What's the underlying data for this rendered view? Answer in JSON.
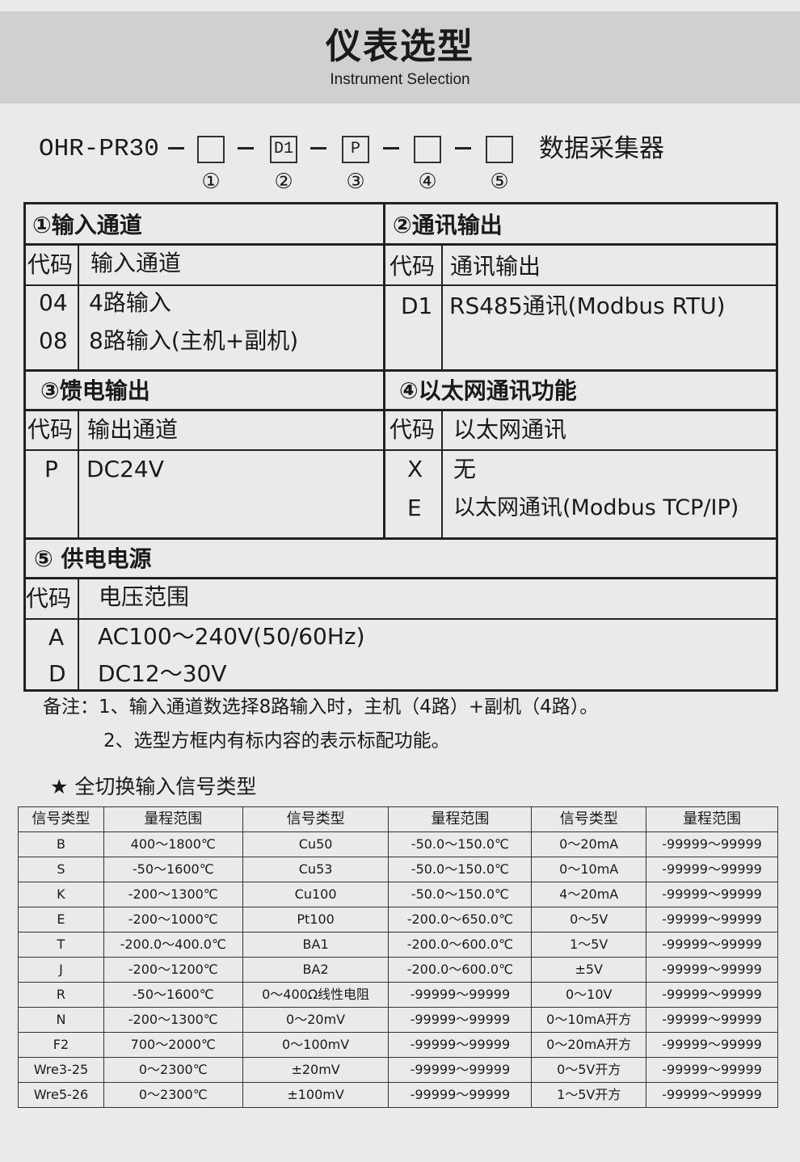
{
  "header": {
    "title": "仪表选型",
    "subtitle": "Instrument Selection"
  },
  "model": {
    "prefix": "OHR-PR30",
    "boxes": [
      "",
      "D1",
      "P",
      "",
      ""
    ],
    "markers": [
      "①",
      "②",
      "③",
      "④",
      "⑤"
    ],
    "product": "数据采集器"
  },
  "selection": {
    "code_label": "代码",
    "s1": {
      "title": "①输入通道",
      "col": "输入通道",
      "rows": [
        {
          "code": "04",
          "desc": "4路输入"
        },
        {
          "code": "08",
          "desc": "8路输入(主机+副机)"
        }
      ]
    },
    "s2": {
      "title": "②通讯输出",
      "col": "通讯输出",
      "rows": [
        {
          "code": "D1",
          "desc": "RS485通讯(Modbus RTU)"
        }
      ]
    },
    "s3": {
      "title": "③馈电输出",
      "col": "输出通道",
      "rows": [
        {
          "code": "P",
          "desc": "DC24V"
        }
      ]
    },
    "s4": {
      "title": "④以太网通讯功能",
      "col": "以太网通讯",
      "rows": [
        {
          "code": "X",
          "desc": "无"
        },
        {
          "code": "E",
          "desc": "以太网通讯(Modbus TCP/IP)"
        }
      ]
    },
    "s5": {
      "title": "⑤ 供电电源",
      "col": "电压范围",
      "rows": [
        {
          "code": "A",
          "desc": "AC100～240V(50/60Hz)"
        },
        {
          "code": "D",
          "desc": "DC12～30V"
        }
      ]
    }
  },
  "notes": {
    "line1": "备注：1、输入通道数选择8路输入时，主机（4路）+副机（4路）。",
    "line2": "2、选型方框内有标内容的表示标配功能。"
  },
  "signals": {
    "heading": "★ 全切换输入信号类型",
    "columns": [
      "信号类型",
      "量程范围",
      "信号类型",
      "量程范围",
      "信号类型",
      "量程范围"
    ],
    "rows": [
      [
        "B",
        "400～1800℃",
        "Cu50",
        "-50.0～150.0℃",
        "0～20mA",
        "-99999～99999"
      ],
      [
        "S",
        "-50～1600℃",
        "Cu53",
        "-50.0～150.0℃",
        "0～10mA",
        "-99999～99999"
      ],
      [
        "K",
        "-200～1300℃",
        "Cu100",
        "-50.0～150.0℃",
        "4～20mA",
        "-99999～99999"
      ],
      [
        "E",
        "-200～1000℃",
        "Pt100",
        "-200.0～650.0℃",
        "0～5V",
        "-99999～99999"
      ],
      [
        "T",
        "-200.0～400.0℃",
        "BA1",
        "-200.0～600.0℃",
        "1～5V",
        "-99999～99999"
      ],
      [
        "J",
        "-200～1200℃",
        "BA2",
        "-200.0～600.0℃",
        "±5V",
        "-99999～99999"
      ],
      [
        "R",
        "-50～1600℃",
        "0～400Ω线性电阻",
        "-99999～99999",
        "0～10V",
        "-99999～99999"
      ],
      [
        "N",
        "-200～1300℃",
        "0～20mV",
        "-99999～99999",
        "0～10mA开方",
        "-99999～99999"
      ],
      [
        "F2",
        "700～2000℃",
        "0～100mV",
        "-99999～99999",
        "0～20mA开方",
        "-99999～99999"
      ],
      [
        "Wre3-25",
        "0～2300℃",
        "±20mV",
        "-99999～99999",
        "0～5V开方",
        "-99999～99999"
      ],
      [
        "Wre5-26",
        "0～2300℃",
        "±100mV",
        "-99999～99999",
        "1～5V开方",
        "-99999～99999"
      ]
    ]
  }
}
